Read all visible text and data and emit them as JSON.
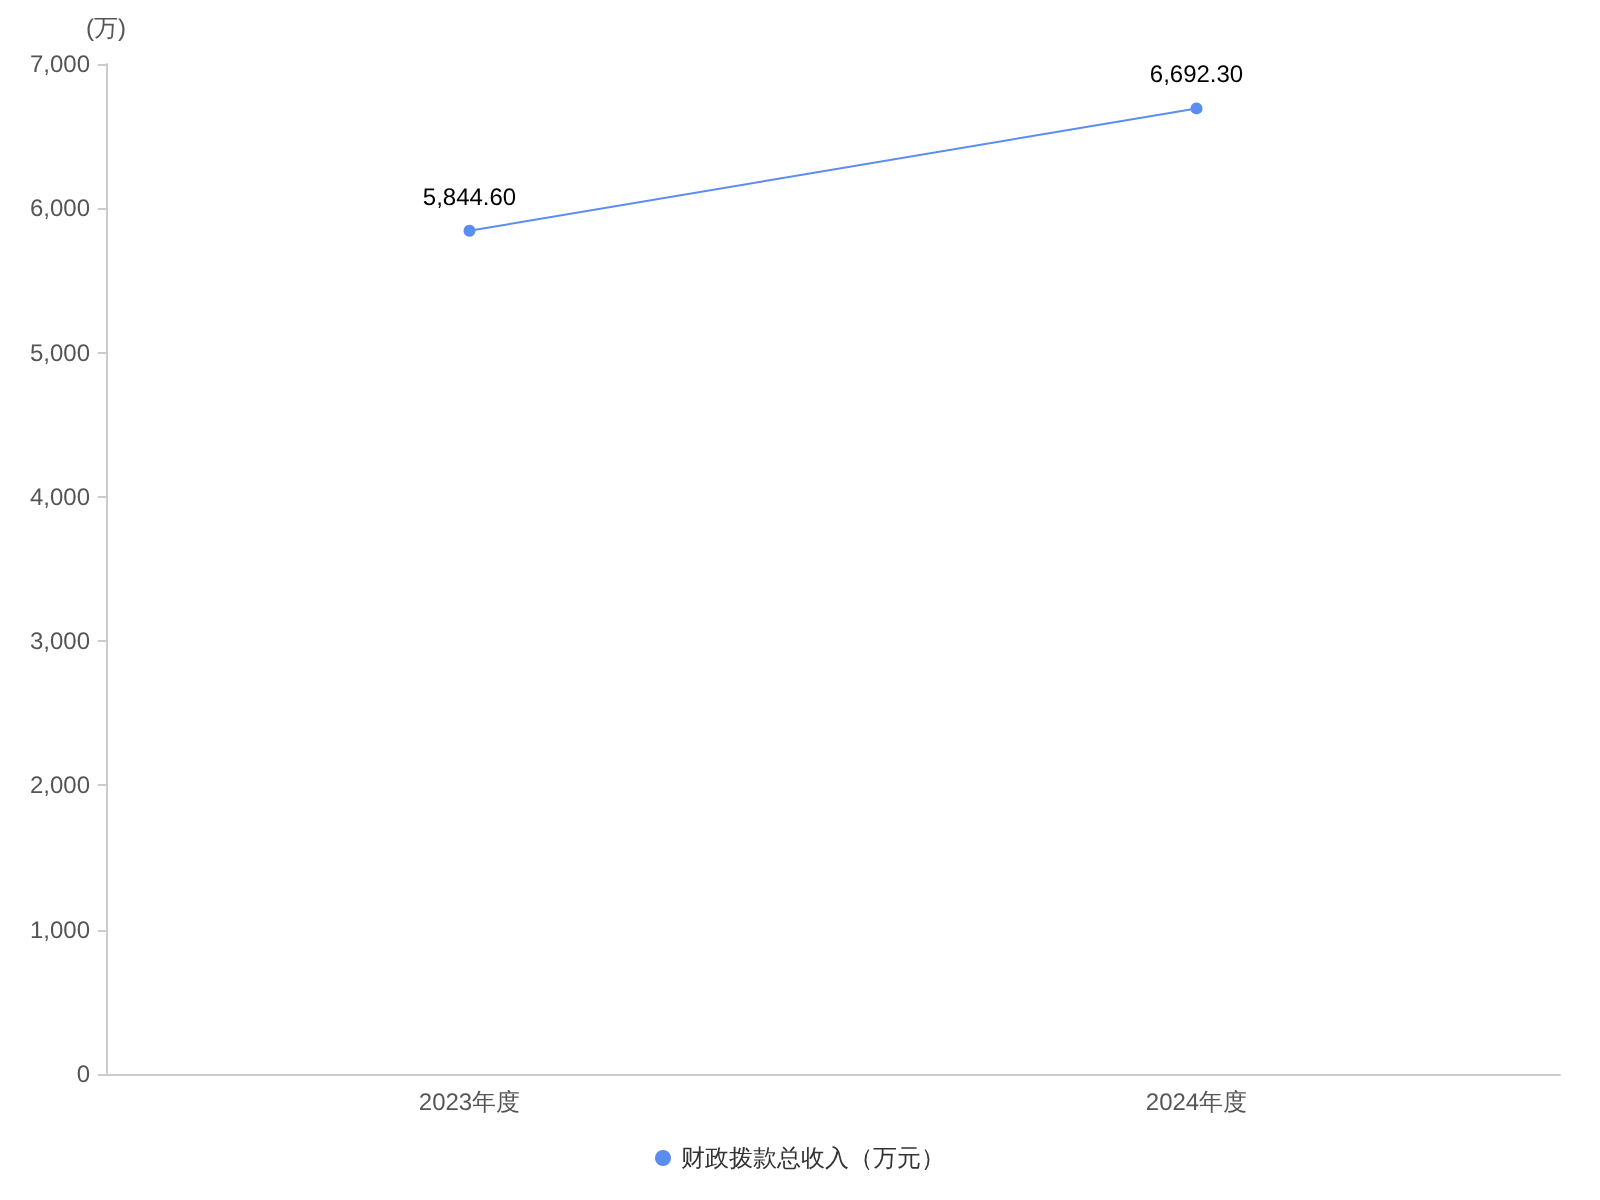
{
  "chart_data": {
    "type": "line",
    "ylabel": "(万)",
    "categories": [
      "2023年度",
      "2024年度"
    ],
    "series": [
      {
        "name": "财政拨款总收入（万元）",
        "color": "#5b8def",
        "values": [
          5844.6,
          6692.3
        ],
        "value_labels": [
          "5,844.60",
          "6,692.30"
        ]
      }
    ],
    "ylim": [
      0,
      7000
    ],
    "yticks": [
      {
        "value": 0,
        "label": "0"
      },
      {
        "value": 1000,
        "label": "1,000"
      },
      {
        "value": 2000,
        "label": "2,000"
      },
      {
        "value": 3000,
        "label": "3,000"
      },
      {
        "value": 4000,
        "label": "4,000"
      },
      {
        "value": 5000,
        "label": "5,000"
      },
      {
        "value": 6000,
        "label": "6,000"
      },
      {
        "value": 7000,
        "label": "7,000"
      }
    ],
    "grid": false,
    "legend": "bottom",
    "marker": "circle",
    "line_style": "solid"
  }
}
